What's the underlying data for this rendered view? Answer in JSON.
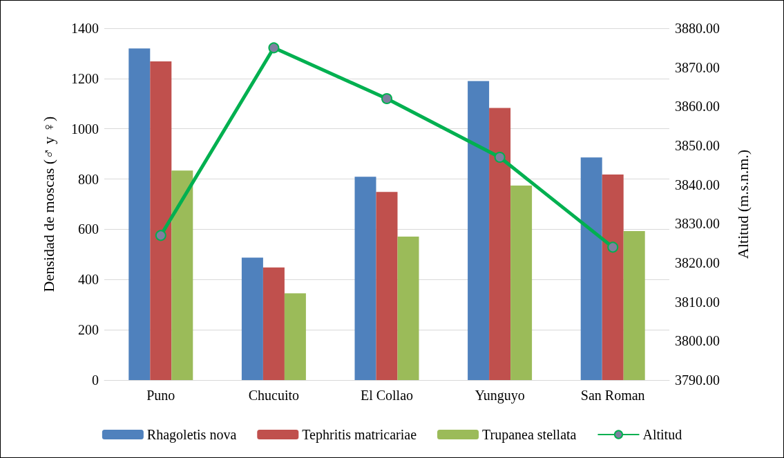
{
  "chart_data": {
    "type": "bar",
    "ylabel": "Densidad de moscas (♂ y ♀)",
    "y2label": "Altitud (m.s.n.m.)",
    "categories": [
      "Puno",
      "Chucuito",
      "El Collao",
      "Yunguyo",
      "San Roman"
    ],
    "series": [
      {
        "name": "Rhagoletis nova",
        "color": "#4f81bd",
        "values": [
          1320,
          487,
          809,
          1190,
          886
        ]
      },
      {
        "name": "Tephritis matricariae",
        "color": "#c0504d",
        "values": [
          1268,
          448,
          749,
          1083,
          818
        ]
      },
      {
        "name": "Trupanea stellata",
        "color": "#9bbb59",
        "values": [
          834,
          345,
          571,
          774,
          593
        ]
      },
      {
        "name": "Altitud",
        "type": "line",
        "axis": "y2",
        "color": "#00b050",
        "marker": "circle",
        "values": [
          3827,
          3875,
          3862,
          3847,
          3824
        ]
      }
    ],
    "ylim": [
      0,
      1400
    ],
    "yticks": [
      0,
      200,
      400,
      600,
      800,
      1000,
      1200,
      1400
    ],
    "y2lim": [
      3790,
      3880
    ],
    "y2ticks": [
      {
        "value": 3790,
        "label": "3790.00"
      },
      {
        "value": 3800,
        "label": "3800.00"
      },
      {
        "value": 3810,
        "label": "3810.00"
      },
      {
        "value": 3820,
        "label": "3820.00"
      },
      {
        "value": 3830,
        "label": "3830.00"
      },
      {
        "value": 3840,
        "label": "3840.00"
      },
      {
        "value": 3850,
        "label": "3850.00"
      },
      {
        "value": 3860,
        "label": "3860.00"
      },
      {
        "value": 3870,
        "label": "3870.00"
      },
      {
        "value": 3880,
        "label": "3880.00"
      }
    ],
    "grid": "y",
    "legend": "bottom"
  }
}
